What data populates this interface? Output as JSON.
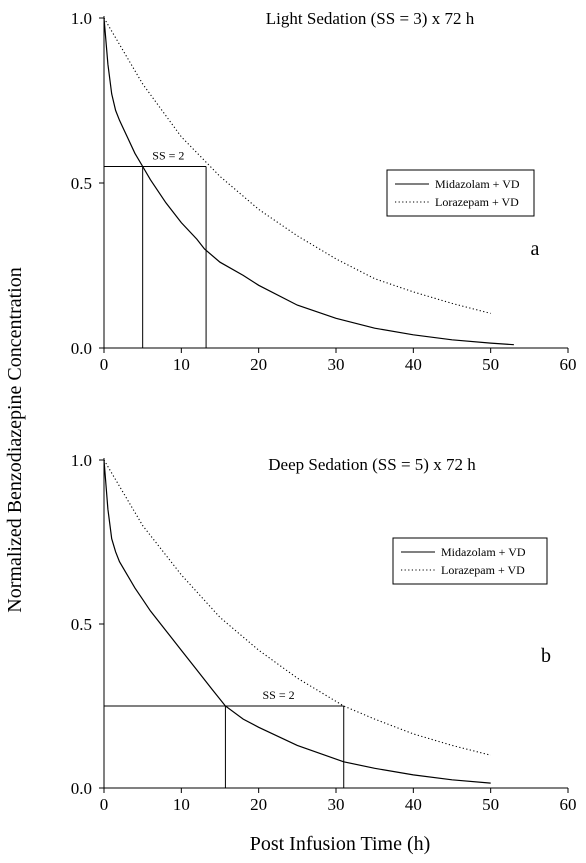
{
  "figure": {
    "ylabel": "Normalized Benzodiazepine Concentration",
    "xlabel": "Post Infusion Time (h)"
  },
  "chart_data": [
    {
      "type": "line",
      "panel_label": "a",
      "title": "Light Sedation (SS = 3) x 72 h",
      "xlim": [
        0,
        60
      ],
      "ylim": [
        0,
        1
      ],
      "xticks": [
        "0",
        "10",
        "20",
        "30",
        "40",
        "50",
        "60"
      ],
      "yticks": [
        "0.0",
        "0.5",
        "1.0"
      ],
      "legend_position": "right",
      "grid": false,
      "series": [
        {
          "name": "Midazolam + VD",
          "style": "solid",
          "x": [
            0,
            0.5,
            1,
            1.5,
            2,
            3,
            4,
            5,
            6,
            8,
            10,
            12,
            13,
            15,
            18,
            20,
            25,
            30,
            35,
            40,
            45,
            50,
            53
          ],
          "y": [
            1.0,
            0.86,
            0.77,
            0.72,
            0.69,
            0.64,
            0.59,
            0.55,
            0.51,
            0.44,
            0.38,
            0.33,
            0.3,
            0.26,
            0.22,
            0.19,
            0.13,
            0.09,
            0.06,
            0.04,
            0.025,
            0.015,
            0.01
          ]
        },
        {
          "name": "Lorazepam + VD",
          "style": "dotted",
          "x": [
            0,
            5,
            10,
            15,
            20,
            25,
            30,
            35,
            40,
            45,
            50
          ],
          "y": [
            1.0,
            0.8,
            0.64,
            0.52,
            0.42,
            0.34,
            0.27,
            0.21,
            0.17,
            0.135,
            0.105
          ]
        }
      ],
      "annotation": {
        "text": "SS = 2",
        "level": 0.55,
        "x_start": 0,
        "x_end": 13.2,
        "drops": [
          5,
          13.2
        ]
      }
    },
    {
      "type": "line",
      "panel_label": "b",
      "title": "Deep Sedation (SS = 5) x 72 h",
      "xlim": [
        0,
        60
      ],
      "ylim": [
        0,
        1
      ],
      "xticks": [
        "0",
        "10",
        "20",
        "30",
        "40",
        "50",
        "60"
      ],
      "yticks": [
        "0.0",
        "0.5",
        "1.0"
      ],
      "legend_position": "right",
      "grid": false,
      "series": [
        {
          "name": "Midazolam + VD",
          "style": "solid",
          "x": [
            0,
            0.5,
            1,
            1.5,
            2,
            3,
            4,
            5,
            6,
            8,
            10,
            12,
            14,
            15.7,
            18,
            20,
            25,
            31,
            35,
            40,
            45,
            50
          ],
          "y": [
            1.0,
            0.85,
            0.76,
            0.72,
            0.69,
            0.65,
            0.61,
            0.575,
            0.54,
            0.48,
            0.42,
            0.36,
            0.3,
            0.25,
            0.21,
            0.185,
            0.13,
            0.08,
            0.06,
            0.04,
            0.025,
            0.015
          ]
        },
        {
          "name": "Lorazepam + VD",
          "style": "dotted",
          "x": [
            0,
            5,
            10,
            15,
            20,
            25,
            31,
            35,
            40,
            45,
            50
          ],
          "y": [
            1.0,
            0.8,
            0.65,
            0.52,
            0.42,
            0.335,
            0.25,
            0.21,
            0.165,
            0.13,
            0.1
          ]
        }
      ],
      "annotation": {
        "text": "SS = 2",
        "level": 0.25,
        "x_start": 0,
        "x_end": 31,
        "drops": [
          15.7,
          31
        ]
      }
    }
  ]
}
